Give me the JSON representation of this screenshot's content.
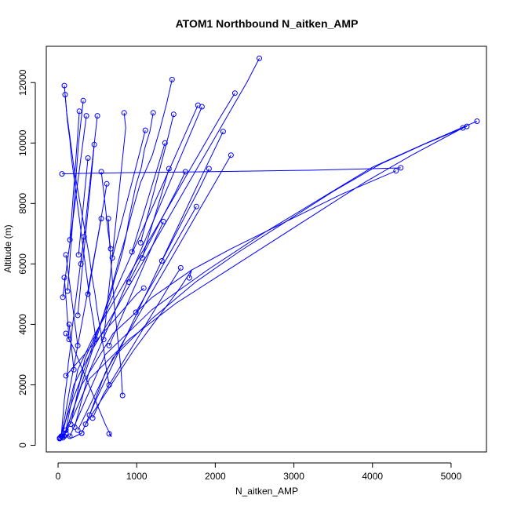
{
  "chart_data": {
    "type": "line",
    "title": "ATOM1 Northbound N_aitken_AMP",
    "xlabel": "N_aitken_AMP",
    "ylabel": "Altitude (m)",
    "xlim": [
      -150,
      5450
    ],
    "ylim": [
      -220,
      13200
    ],
    "x_ticks": [
      0,
      1000,
      2000,
      3000,
      4000,
      5000
    ],
    "y_ticks": [
      0,
      2000,
      4000,
      6000,
      8000,
      10000,
      12000
    ],
    "grid": false,
    "markers": "open-circle",
    "line_color": "#0000ff",
    "series": [
      {
        "x": [
          20,
          60,
          120,
          200,
          290,
          360,
          440,
          520,
          590,
          660,
          720,
          780,
          830,
          870,
          910,
          950,
          990,
          1060,
          1100,
          1170,
          1210
        ],
        "y": [
          240,
          500,
          1000,
          1600,
          2200,
          2700,
          3300,
          3900,
          4400,
          4900,
          5500,
          6000,
          6500,
          7000,
          7600,
          8100,
          8600,
          9200,
          9800,
          10400,
          11000
        ]
      },
      {
        "x": [
          1450,
          1380,
          1300,
          1200,
          1050,
          950,
          870,
          780,
          700,
          610,
          520,
          420,
          320,
          220,
          130,
          60
        ],
        "y": [
          12100,
          11300,
          10500,
          9600,
          8700,
          7800,
          7000,
          6200,
          5400,
          4600,
          3800,
          3000,
          2200,
          1400,
          700,
          250
        ]
      },
      {
        "x": [
          90,
          110,
          140,
          170,
          200,
          240,
          280,
          320,
          360,
          400,
          430,
          470,
          500,
          540,
          580,
          610,
          650
        ],
        "y": [
          11600,
          11000,
          10400,
          9800,
          9200,
          8600,
          8000,
          7400,
          6800,
          6200,
          5600,
          5000,
          4400,
          3800,
          3200,
          2600,
          2000
        ]
      },
      {
        "x": [
          80,
          100,
          120,
          150,
          170,
          200,
          230,
          260,
          290,
          320,
          350,
          380,
          410,
          450,
          480
        ],
        "y": [
          11900,
          11300,
          10700,
          10100,
          9500,
          8900,
          8300,
          7700,
          7100,
          6500,
          5900,
          5300,
          4700,
          4100,
          3500
        ]
      },
      {
        "x": [
          40,
          60,
          80,
          110,
          130,
          160,
          180,
          210,
          240,
          270,
          300,
          330
        ],
        "y": [
          300,
          900,
          1500,
          2100,
          2700,
          3300,
          3900,
          4500,
          5100,
          5700,
          6300,
          6900
        ]
      },
      {
        "x": [
          60,
          90,
          120,
          150,
          180,
          210,
          240,
          270,
          300,
          330,
          360
        ],
        "y": [
          4900,
          5500,
          6100,
          6700,
          7300,
          7900,
          8500,
          9100,
          9700,
          10300,
          10900
        ]
      },
      {
        "x": [
          30,
          70,
          110,
          150,
          200,
          250,
          300,
          350,
          400,
          450,
          500,
          550
        ],
        "y": [
          250,
          700,
          1300,
          1900,
          2600,
          3300,
          4000,
          4700,
          5400,
          6100,
          6800,
          7500
        ]
      },
      {
        "x": [
          2560,
          2400,
          2200,
          2000,
          1800,
          1600,
          1400,
          1200,
          1000,
          800,
          600,
          400,
          200,
          50
        ],
        "y": [
          12800,
          12000,
          11100,
          10200,
          9300,
          8400,
          7500,
          6600,
          5700,
          4800,
          3900,
          3000,
          2000,
          300
        ]
      },
      {
        "x": [
          2250,
          2050,
          1850,
          1650,
          1450,
          1250,
          1050,
          850,
          650,
          450,
          250,
          100
        ],
        "y": [
          11650,
          10800,
          9900,
          9000,
          8100,
          7200,
          6300,
          5400,
          4500,
          3600,
          2500,
          500
        ]
      },
      {
        "x": [
          1780,
          1600,
          1420,
          1240,
          1060,
          880,
          700,
          520,
          340,
          160
        ],
        "y": [
          11250,
          10200,
          9150,
          8100,
          7050,
          6000,
          4950,
          3900,
          2850,
          700
        ]
      },
      {
        "x": [
          1830,
          1650,
          1470,
          1290,
          1110,
          930,
          750,
          570,
          390,
          210
        ],
        "y": [
          11200,
          10100,
          9000,
          7900,
          6800,
          5700,
          4600,
          3500,
          2400,
          600
        ]
      },
      {
        "x": [
          2100,
          1900,
          1700,
          1500,
          1300,
          1100,
          900,
          700,
          500,
          300
        ],
        "y": [
          10380,
          9300,
          8200,
          7100,
          6000,
          4900,
          3800,
          2700,
          1600,
          400
        ]
      },
      {
        "x": [
          2200,
          2000,
          1800,
          1600,
          1400,
          1200,
          1000,
          800,
          600,
          400
        ],
        "y": [
          9600,
          8700,
          7800,
          6900,
          6000,
          5100,
          4200,
          3300,
          2400,
          1000
        ]
      },
      {
        "x": [
          5330,
          5200,
          4650,
          4000,
          3300,
          2600,
          1900,
          1200,
          600,
          150
        ],
        "y": [
          10720,
          10580,
          9960,
          9200,
          8100,
          7000,
          5800,
          4500,
          3000,
          300
        ]
      },
      {
        "x": [
          5200,
          4650,
          4100,
          3500,
          2900,
          2300,
          1750,
          1200,
          700,
          250
        ],
        "y": [
          10550,
          9950,
          9300,
          8400,
          7400,
          6400,
          5400,
          4200,
          2900,
          500
        ]
      },
      {
        "x": [
          5150,
          4500,
          3900,
          3300,
          2700,
          2100,
          1500,
          900,
          400,
          100
        ],
        "y": [
          10500,
          9600,
          8700,
          7700,
          6700,
          5700,
          4700,
          3500,
          2200,
          400
        ]
      },
      {
        "x": [
          4360,
          4000,
          3200,
          2400,
          1600,
          900,
          400,
          50
        ],
        "y": [
          9180,
          9150,
          9100,
          9070,
          9040,
          9020,
          9000,
          8980
        ]
      },
      {
        "x": [
          4300,
          3600,
          2900,
          2200,
          1700,
          1200,
          700,
          300,
          80
        ],
        "y": [
          9080,
          8300,
          7400,
          6500,
          5800,
          4900,
          3700,
          2000,
          300
        ]
      },
      {
        "x": [
          1560,
          1420,
          1280,
          1140,
          1000,
          860,
          720,
          580,
          440
        ],
        "y": [
          5870,
          5300,
          4700,
          4100,
          3500,
          2900,
          2300,
          1700,
          900
        ]
      },
      {
        "x": [
          1670,
          1700,
          1550,
          1350,
          1150,
          950,
          750,
          550,
          350
        ],
        "y": [
          5540,
          5800,
          5200,
          4500,
          3800,
          3100,
          2300,
          1500,
          700
        ]
      },
      {
        "x": [
          840,
          860,
          820,
          780,
          740,
          700,
          660,
          620,
          580
        ],
        "y": [
          11000,
          10500,
          9500,
          8500,
          7500,
          6500,
          5500,
          4500,
          3500
        ]
      },
      {
        "x": [
          820,
          800,
          760,
          720,
          690,
          660,
          640
        ],
        "y": [
          1650,
          2520,
          3500,
          4500,
          5500,
          6500,
          7500
        ]
      },
      {
        "x": [
          650,
          680,
          600,
          520,
          440,
          360,
          280,
          200,
          100
        ],
        "y": [
          380,
          280,
          700,
          1200,
          1700,
          2200,
          2700,
          3200,
          3700
        ]
      },
      {
        "x": [
          1090,
          1000,
          900,
          800,
          700,
          600,
          500,
          400,
          300,
          200,
          100
        ],
        "y": [
          5200,
          5000,
          4700,
          4400,
          4100,
          3800,
          3500,
          3200,
          2900,
          2600,
          2300
        ]
      },
      {
        "x": [
          1340,
          1250,
          1150,
          1050,
          950,
          850,
          750,
          650
        ],
        "y": [
          7400,
          6900,
          6300,
          5700,
          5100,
          4500,
          3900,
          3300
        ]
      },
      {
        "x": [
          1760,
          1650,
          1540,
          1430,
          1320,
          1210,
          1100,
          990
        ],
        "y": [
          7900,
          7400,
          6900,
          6400,
          5900,
          5400,
          4900,
          4400
        ]
      },
      {
        "x": [
          1620,
          1500,
          1380,
          1260,
          1140,
          1020,
          900
        ],
        "y": [
          9050,
          8400,
          7800,
          7200,
          6600,
          6000,
          5400
        ]
      },
      {
        "x": [
          1410,
          1350,
          1280,
          1210,
          1140,
          1070
        ],
        "y": [
          9150,
          8600,
          8000,
          7400,
          6800,
          6200
        ]
      },
      {
        "x": [
          1920,
          1800,
          1680,
          1560,
          1440,
          1320
        ],
        "y": [
          9150,
          8500,
          7900,
          7300,
          6700,
          6100
        ]
      },
      {
        "x": [
          320,
          290,
          260,
          240,
          220,
          200,
          180,
          160,
          140,
          120
        ],
        "y": [
          11400,
          10700,
          10000,
          9300,
          8600,
          7900,
          7200,
          6500,
          5800,
          5100
        ]
      },
      {
        "x": [
          270,
          250,
          230,
          210,
          190,
          170,
          150
        ],
        "y": [
          11050,
          10300,
          9600,
          8900,
          8200,
          7500,
          6800
        ]
      },
      {
        "x": [
          500,
          470,
          440,
          410,
          380,
          350,
          320,
          290
        ],
        "y": [
          10900,
          10200,
          9500,
          8800,
          8100,
          7400,
          6700,
          6000
        ]
      },
      {
        "x": [
          620,
          580,
          540,
          500,
          460,
          420,
          380
        ],
        "y": [
          8650,
          8000,
          7400,
          6800,
          6200,
          5600,
          5000
        ]
      },
      {
        "x": [
          460,
          430,
          400,
          370,
          340,
          310,
          280,
          250
        ],
        "y": [
          9950,
          9100,
          8300,
          7500,
          6700,
          5900,
          5100,
          4300
        ]
      },
      {
        "x": [
          1470,
          1400,
          1330,
          1260,
          1190,
          1120,
          1050
        ],
        "y": [
          10950,
          10200,
          9500,
          8800,
          8100,
          7400,
          6700
        ]
      },
      {
        "x": [
          1360,
          1290,
          1220,
          1150,
          1080,
          1010,
          940
        ],
        "y": [
          10000,
          9400,
          8800,
          8200,
          7600,
          7000,
          6400
        ]
      },
      {
        "x": [
          1110,
          1040,
          970,
          900,
          830,
          760,
          690
        ],
        "y": [
          10420,
          9700,
          9000,
          8300,
          7600,
          6900,
          6200
        ]
      },
      {
        "x": [
          100,
          130,
          160,
          190,
          220,
          250
        ],
        "y": [
          6300,
          5700,
          5100,
          4500,
          3900,
          3300
        ]
      },
      {
        "x": [
          80,
          100,
          120,
          140
        ],
        "y": [
          5550,
          4900,
          4200,
          3500
        ]
      },
      {
        "x": [
          140,
          160,
          180,
          200
        ],
        "y": [
          4000,
          3500,
          3000,
          2500
        ]
      },
      {
        "x": [
          550,
          580,
          610,
          640,
          670
        ],
        "y": [
          9050,
          8400,
          7700,
          7000,
          6500
        ]
      },
      {
        "x": [
          380,
          350,
          320,
          290,
          260
        ],
        "y": [
          9500,
          8700,
          7900,
          7100,
          6300
        ]
      },
      {
        "x": [
          20,
          40,
          60,
          80,
          100,
          130,
          160,
          190,
          220,
          260,
          300
        ],
        "y": [
          220,
          260,
          300,
          250,
          280,
          320,
          240,
          260,
          300,
          350,
          400
        ]
      }
    ]
  }
}
